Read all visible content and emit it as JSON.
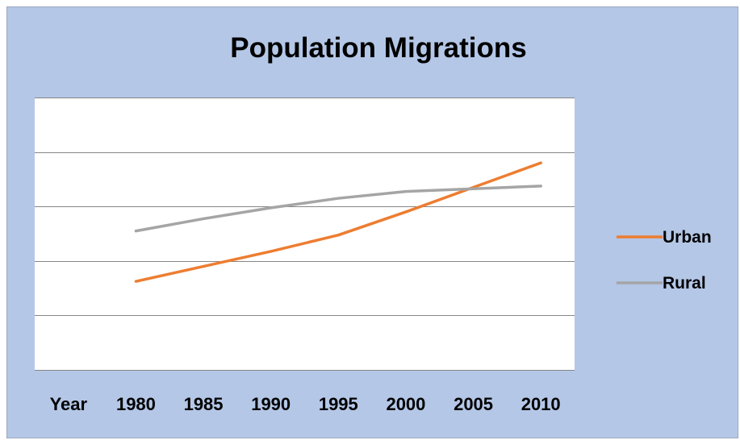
{
  "chart_data": {
    "type": "line",
    "title": "Population Migrations",
    "categories": [
      "Year",
      "1980",
      "1985",
      "1990",
      "1995",
      "2000",
      "2005",
      "2010"
    ],
    "series": [
      {
        "name": "Urban",
        "color": "#ed7d31",
        "values": [
          null,
          3.25,
          3.8,
          4.35,
          4.95,
          5.8,
          6.7,
          7.6
        ]
      },
      {
        "name": "Rural",
        "color": "#a5a5a5",
        "values": [
          null,
          5.1,
          5.55,
          5.95,
          6.3,
          6.55,
          6.65,
          6.75
        ]
      }
    ],
    "ylim": [
      0,
      10
    ],
    "grid": true,
    "legend_position": "right",
    "background_color": "#b4c7e7",
    "plot_background_color": "#ffffff"
  }
}
